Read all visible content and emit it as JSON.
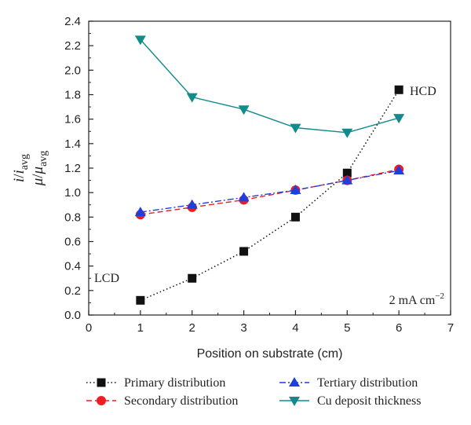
{
  "chart_data": {
    "type": "line",
    "xlabel": "Position on substrate (cm)",
    "ylabel": {
      "line1_main": "i",
      "line1_sep": "/",
      "line1_den": "i",
      "line1_sub": "avg",
      "line2_main": "μ",
      "line2_sep": "/",
      "line2_den": "μ",
      "line2_sub": "avg"
    },
    "xlim": [
      0,
      7
    ],
    "ylim": [
      0,
      2.4
    ],
    "x_ticks": [
      0,
      1,
      2,
      3,
      4,
      5,
      6,
      7
    ],
    "y_ticks": [
      0.0,
      0.2,
      0.4,
      0.6,
      0.8,
      1.0,
      1.2,
      1.4,
      1.6,
      1.8,
      2.0,
      2.2,
      2.4
    ],
    "x_tick_labels": [
      "0",
      "1",
      "2",
      "3",
      "4",
      "5",
      "6",
      "7"
    ],
    "y_tick_labels": [
      "0.0",
      "0.2",
      "0.4",
      "0.6",
      "0.8",
      "1.0",
      "1.2",
      "1.4",
      "1.6",
      "1.8",
      "2.0",
      "2.2",
      "2.4"
    ],
    "grid": false,
    "legend_position": "below",
    "series": [
      {
        "name": "Primary distribution",
        "color": "#111111",
        "marker": "square",
        "line_style": "dotted",
        "x": [
          1,
          2,
          3,
          4,
          5,
          6
        ],
        "y": [
          0.12,
          0.3,
          0.52,
          0.8,
          1.16,
          1.84
        ]
      },
      {
        "name": "Secondary distribution",
        "color": "#ee1c24",
        "marker": "circle",
        "line_style": "dashed",
        "x": [
          1,
          2,
          3,
          4,
          5,
          6
        ],
        "y": [
          0.82,
          0.88,
          0.94,
          1.02,
          1.1,
          1.19
        ]
      },
      {
        "name": "Tertiary distribution",
        "color": "#1f3fdc",
        "marker": "triangle-up",
        "line_style": "dashdot",
        "x": [
          1,
          2,
          3,
          4,
          5,
          6
        ],
        "y": [
          0.84,
          0.9,
          0.96,
          1.02,
          1.1,
          1.18
        ]
      },
      {
        "name": "Cu deposit thickness",
        "color": "#118b8b",
        "marker": "triangle-down",
        "line_style": "solid",
        "x": [
          1,
          2,
          3,
          4,
          5,
          6
        ],
        "y": [
          2.25,
          1.78,
          1.68,
          1.53,
          1.49,
          1.61
        ]
      }
    ],
    "annotations": {
      "hcd": "HCD",
      "lcd": "LCD",
      "current_density_value": "2 mA cm",
      "current_density_exp": "−2"
    }
  }
}
